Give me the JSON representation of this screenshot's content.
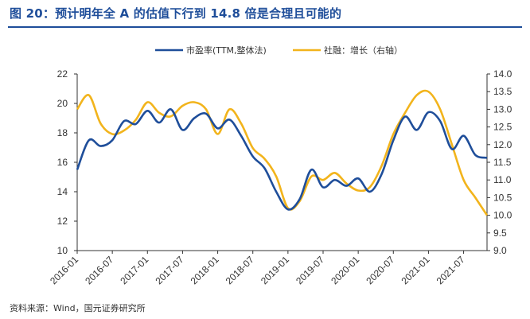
{
  "header": {
    "title": "图 20：预计明年全 A 的估值下行到 14.8 倍是合理且可能的"
  },
  "footer": {
    "source": "资料来源：Wind，国元证券研究所"
  },
  "colors": {
    "title": "#1f4e9a",
    "series_pe": "#1f4e9a",
    "series_social": "#f2b41c",
    "axis": "#333333"
  },
  "chart_data": {
    "type": "line",
    "title": "",
    "x": [
      "2016-01",
      "2016-03",
      "2016-05",
      "2016-07",
      "2016-09",
      "2016-11",
      "2017-01",
      "2017-03",
      "2017-05",
      "2017-07",
      "2017-09",
      "2017-11",
      "2018-01",
      "2018-03",
      "2018-05",
      "2018-07",
      "2018-09",
      "2018-11",
      "2019-01",
      "2019-03",
      "2019-05",
      "2019-07",
      "2019-09",
      "2019-11",
      "2020-01",
      "2020-03",
      "2020-05",
      "2020-07",
      "2020-09",
      "2020-11",
      "2021-01",
      "2021-03",
      "2021-05",
      "2021-07",
      "2021-09",
      "2021-10"
    ],
    "xticks": [
      "2016-01",
      "2016-07",
      "2017-01",
      "2017-07",
      "2018-01",
      "2018-07",
      "2019-01",
      "2019-07",
      "2020-01",
      "2020-07",
      "2021-01",
      "2021-07"
    ],
    "y_left": {
      "min": 10,
      "max": 22,
      "step": 2,
      "ticks": [
        "10",
        "12",
        "14",
        "16",
        "18",
        "20",
        "22"
      ]
    },
    "y_right": {
      "min": 9.0,
      "max": 14.0,
      "step": 0.5,
      "ticks": [
        "9.0",
        "9.5",
        "10.0",
        "10.5",
        "11.0",
        "11.5",
        "12.0",
        "12.5",
        "13.0",
        "13.5",
        "14.0"
      ]
    },
    "series": [
      {
        "name": "市盈率(TTM,整体法)",
        "axis": "left",
        "values": [
          15.5,
          17.5,
          17.1,
          17.5,
          18.8,
          18.6,
          19.5,
          18.7,
          19.6,
          18.2,
          19.0,
          19.3,
          18.3,
          18.9,
          17.8,
          16.4,
          15.6,
          14.0,
          12.8,
          13.5,
          15.5,
          14.3,
          14.8,
          14.4,
          14.9,
          14.0,
          15.2,
          17.5,
          19.1,
          18.2,
          19.4,
          18.8,
          16.9,
          17.8,
          16.5,
          16.3
        ]
      },
      {
        "name": "社融：增长（右轴）",
        "axis": "right",
        "values": [
          13.0,
          13.4,
          12.6,
          12.3,
          12.4,
          12.7,
          13.2,
          12.9,
          12.8,
          13.1,
          13.2,
          13.0,
          12.3,
          13.0,
          12.6,
          11.9,
          11.6,
          11.1,
          10.2,
          10.4,
          11.1,
          11.0,
          11.2,
          10.9,
          10.7,
          10.8,
          11.4,
          12.3,
          12.9,
          13.4,
          13.5,
          13.0,
          12.0,
          11.0,
          10.5,
          10.0
        ]
      }
    ]
  }
}
